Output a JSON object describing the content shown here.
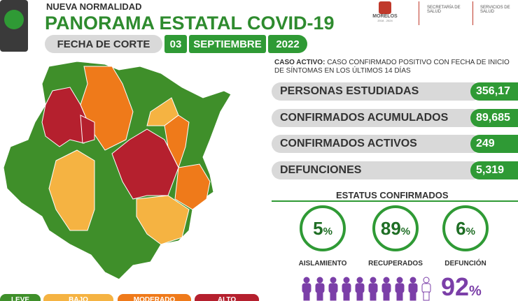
{
  "header": {
    "kicker": "NUEVA NORMALIDAD",
    "title": "PANORAMA ESTATAL COVID-19",
    "date_label": "FECHA DE CORTE",
    "day": "03",
    "month": "SEPTIEMBRE",
    "year": "2022"
  },
  "logos": {
    "state": "MORELOS",
    "state_period": "2018 - 2024",
    "secretaria": "SECRETARÍA DE SALUD",
    "servicios": "SERVICIOS DE SALUD"
  },
  "definition": {
    "term": "CASO ACTIVO:",
    "text": "CASO CONFIRMADO POSITIVO CON FECHA DE INICIO DE SÍNTOMAS EN LOS ÚLTIMOS 14 DÍAS"
  },
  "stats": [
    {
      "label": "PERSONAS ESTUDIADAS",
      "value": "356,17"
    },
    {
      "label": "CONFIRMADOS ACUMULADOS",
      "value": "89,685"
    },
    {
      "label": "CONFIRMADOS ACTIVOS",
      "value": "249"
    },
    {
      "label": "DEFUNCIONES",
      "value": "5,319"
    }
  ],
  "status": {
    "title": "ESTATUS CONFIRMADOS",
    "items": [
      {
        "value": "5",
        "unit": "%",
        "label": "AISLAMIENTO"
      },
      {
        "value": "89",
        "unit": "%",
        "label": "RECUPERADOS"
      },
      {
        "value": "6",
        "unit": "%",
        "label": "DEFUNCIÓN"
      }
    ]
  },
  "recovered": {
    "value": "92",
    "unit": "%"
  },
  "legend": [
    "LEVE",
    "BAJO",
    "MODERADO",
    "ALTO"
  ]
}
